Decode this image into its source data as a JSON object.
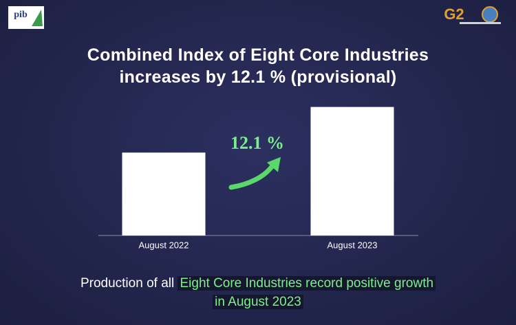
{
  "chart_data": {
    "type": "bar",
    "title": "Combined Index of Eight Core Industries\nincreases by 12.1 % (provisional)",
    "categories": [
      "August 2022",
      "August 2023"
    ],
    "values": [
      100,
      112.1
    ],
    "color": "#ffffff",
    "ylim": [
      78,
      116
    ],
    "annotation": "12.1 %",
    "annotation_color": "#7cf08a",
    "caption": {
      "plain": "Production of all",
      "highlight": "Eight Core Industries record positive growth in August 2023"
    },
    "logos": [
      "pib",
      "G2"
    ]
  }
}
